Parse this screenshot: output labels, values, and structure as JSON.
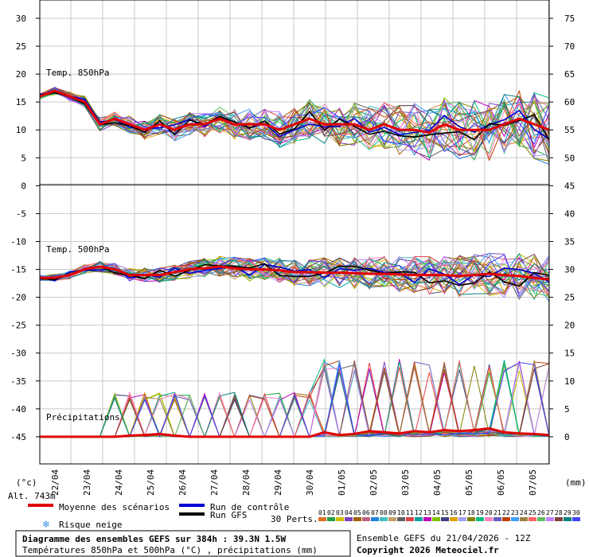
{
  "chart_data": {
    "type": "line",
    "title": "Diagramme des ensembles GEFS sur 384h : 39.3N 1.5W",
    "subtitle": "Températures 850hPa et 500hPa (°C) , précipitations (mm)",
    "run_info": "Ensemble GEFS du 21/04/2026 - 12Z",
    "copyright": "Copyright 2026 Meteociel.fr",
    "altitude": "Alt. 743m",
    "left_unit": "(°c)",
    "right_unit": "(mm)",
    "panel_labels": {
      "t850": "Temp. 850hPa",
      "t500": "Temp. 500hPa",
      "precip": "Précipitations"
    },
    "left_axis": {
      "ticks": [
        "30",
        "25",
        "20",
        "15",
        "10",
        "5",
        "0",
        "-5",
        "-10",
        "-15",
        "-20",
        "-25",
        "-30",
        "-35",
        "-40",
        "-45"
      ]
    },
    "right_axis": {
      "ticks": [
        "75",
        "70",
        "65",
        "60",
        "55",
        "50",
        "45",
        "40",
        "35",
        "30",
        "25",
        "20",
        "15",
        "10",
        "5",
        "0"
      ]
    },
    "x_dates": [
      "22/04",
      "23/04",
      "24/04",
      "25/04",
      "26/04",
      "27/04",
      "28/04",
      "29/04",
      "30/04",
      "01/05",
      "02/05",
      "03/05",
      "04/05",
      "05/05",
      "06/05",
      "07/05"
    ],
    "legend": {
      "mean": "Moyenne des scénarios",
      "control": "Run de contrôle",
      "gfs": "Run GFS",
      "snow": "Risque neige",
      "perts_label": "30 Perts.",
      "pert_numbers": [
        "01",
        "02",
        "03",
        "04",
        "05",
        "06",
        "07",
        "08",
        "09",
        "10",
        "11",
        "12",
        "13",
        "14",
        "15",
        "16",
        "17",
        "18",
        "19",
        "20",
        "21",
        "22",
        "23",
        "24",
        "25",
        "26",
        "27",
        "28",
        "29",
        "30"
      ],
      "pert_colors": [
        "#e07020",
        "#20a040",
        "#d0c000",
        "#8040c0",
        "#a06000",
        "#c06080",
        "#2080e0",
        "#40c0c0",
        "#c0a060",
        "#606060",
        "#e04040",
        "#00a0a0",
        "#c000c0",
        "#80c000",
        "#404080",
        "#e0a000",
        "#a0a0ff",
        "#808000",
        "#00c080",
        "#ff80c0",
        "#6060c0",
        "#c04000",
        "#40a0ff",
        "#a08040",
        "#ff6060",
        "#60c060",
        "#c080ff",
        "#804040",
        "#008080",
        "#4040ff"
      ]
    },
    "colors": {
      "mean": "#e00000",
      "control": "#0000d0",
      "gfs": "#000000",
      "grid": "#c8c8c8",
      "snow": "#3a8ee6"
    },
    "series_mean": {
      "t850": [
        16,
        17,
        16,
        15,
        11,
        12,
        11,
        10,
        11,
        10,
        11,
        11,
        12,
        11,
        11,
        11,
        10,
        11,
        12,
        11,
        11,
        11,
        10,
        11,
        10,
        10,
        9.5,
        11,
        10,
        10,
        10,
        11,
        12,
        11,
        10
      ],
      "t500": [
        -16.5,
        -16.5,
        -16,
        -15,
        -14.5,
        -15,
        -16,
        -16,
        -16,
        -15.5,
        -15,
        -14.8,
        -14.5,
        -14.8,
        -15,
        -15,
        -15.2,
        -15.5,
        -15.5,
        -15.6,
        -15.6,
        -15.7,
        -15.8,
        -15.8,
        -15.9,
        -16,
        -16,
        -16,
        -16.2,
        -16,
        -15.8,
        -16,
        -16.2,
        -16.5,
        -16.8
      ],
      "precip": [
        0,
        0,
        0,
        0,
        0,
        0,
        0.2,
        0.3,
        0.5,
        0.2,
        0,
        0,
        0,
        0,
        0,
        0,
        0,
        0,
        0,
        0.8,
        0.3,
        0.5,
        1,
        0.8,
        0.6,
        1,
        0.8,
        1.2,
        1,
        1.2,
        1.5,
        0.8,
        0.6,
        0.5,
        0.3
      ]
    }
  }
}
